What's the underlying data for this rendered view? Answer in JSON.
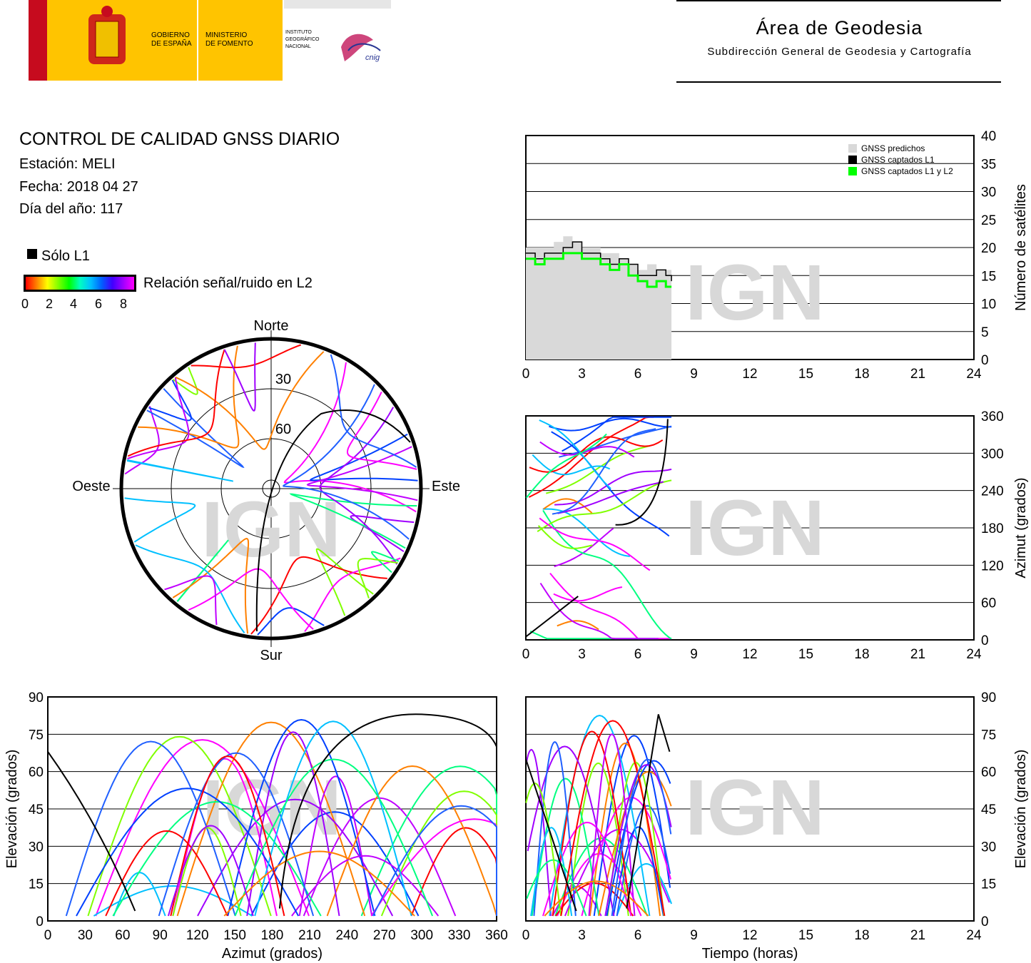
{
  "header": {
    "logo_gob": [
      "GOBIERNO",
      "DE ESPAÑA"
    ],
    "logo_min": [
      "MINISTERIO",
      "DE FOMENTO"
    ],
    "logo_ign": [
      "INSTITUTO",
      "GEOGRÁFICO",
      "NACIONAL"
    ],
    "logo_cnig": "cnig",
    "area_title": "Área de Geodesia",
    "area_subtitle": "Subdirección General de Geodesia y Cartografía"
  },
  "info": {
    "title": "CONTROL DE CALIDAD GNSS DIARIO",
    "station": "Estación: MELI",
    "date": "Fecha: 2018 04 27",
    "doy": "Día del año: 117"
  },
  "legend": {
    "l1_only": "Sólo L1",
    "snr_label": "Relación señal/ruido en L2",
    "snr_ticks": [
      "0",
      "2",
      "4",
      "6",
      "8"
    ]
  },
  "watermark": "IGN",
  "colors": {
    "predicted": "#d9d9d9",
    "l1": "#000000",
    "l1l2": "#00ff00"
  },
  "chart_data": [
    {
      "type": "area",
      "name": "satellite-count",
      "ylabel": "Número de satélites",
      "xlim": [
        0,
        24
      ],
      "ylim": [
        0,
        40
      ],
      "xticks": [
        "0",
        "3",
        "6",
        "9",
        "12",
        "15",
        "18",
        "21",
        "24"
      ],
      "yticks": [
        "0",
        "5",
        "10",
        "15",
        "20",
        "25",
        "30",
        "35",
        "40"
      ],
      "legend_position": "top-right",
      "legend": [
        "GNSS predichos",
        "GNSS captados L1",
        "GNSS captados L1 y L2"
      ],
      "x": [
        0,
        0.5,
        1,
        1.5,
        2,
        2.5,
        3,
        3.5,
        4,
        4.5,
        5,
        5.5,
        6,
        6.5,
        7,
        7.5,
        7.8
      ],
      "series": [
        {
          "name": "GNSS predichos",
          "values": [
            20,
            20,
            20,
            21,
            22,
            21,
            20,
            20,
            19,
            19,
            18,
            17,
            16,
            17,
            16,
            16,
            15
          ]
        },
        {
          "name": "GNSS captados L1",
          "values": [
            19,
            18,
            19,
            19,
            20,
            21,
            19,
            19,
            18,
            17,
            18,
            17,
            15,
            15,
            16,
            15,
            14
          ]
        },
        {
          "name": "GNSS captados L1 y L2",
          "values": [
            18,
            17,
            18,
            18,
            19,
            19,
            18,
            18,
            17,
            16,
            17,
            15,
            14,
            13,
            14,
            13,
            13
          ]
        }
      ]
    },
    {
      "type": "scatter",
      "name": "azimuth-time",
      "ylabel": "Azimut (grados)",
      "xlim": [
        0,
        24
      ],
      "ylim": [
        0,
        360
      ],
      "xticks": [
        "0",
        "3",
        "6",
        "9",
        "12",
        "15",
        "18",
        "21",
        "24"
      ],
      "yticks": [
        "0",
        "60",
        "120",
        "180",
        "240",
        "300",
        "360"
      ]
    },
    {
      "type": "scatter",
      "name": "elevation-azimuth",
      "xlabel": "Azimut (grados)",
      "ylabel": "Elevación (grados)",
      "xlim": [
        0,
        360
      ],
      "ylim": [
        0,
        90
      ],
      "xticks": [
        "0",
        "30",
        "60",
        "90",
        "120",
        "150",
        "180",
        "210",
        "240",
        "270",
        "300",
        "330",
        "360"
      ],
      "yticks": [
        "0",
        "15",
        "30",
        "45",
        "60",
        "75",
        "90"
      ]
    },
    {
      "type": "scatter",
      "name": "elevation-time",
      "xlabel": "Tiempo (horas)",
      "ylabel": "Elevación (grados)",
      "xlim": [
        0,
        24
      ],
      "ylim": [
        0,
        90
      ],
      "xticks": [
        "0",
        "3",
        "6",
        "9",
        "12",
        "15",
        "18",
        "21",
        "24"
      ],
      "yticks": [
        "0",
        "15",
        "30",
        "45",
        "60",
        "75",
        "90"
      ]
    },
    {
      "type": "scatter",
      "name": "skyplot",
      "directions": {
        "north": "Norte",
        "south": "Sur",
        "east": "Este",
        "west": "Oeste"
      },
      "rings": [
        "30",
        "60"
      ]
    }
  ]
}
